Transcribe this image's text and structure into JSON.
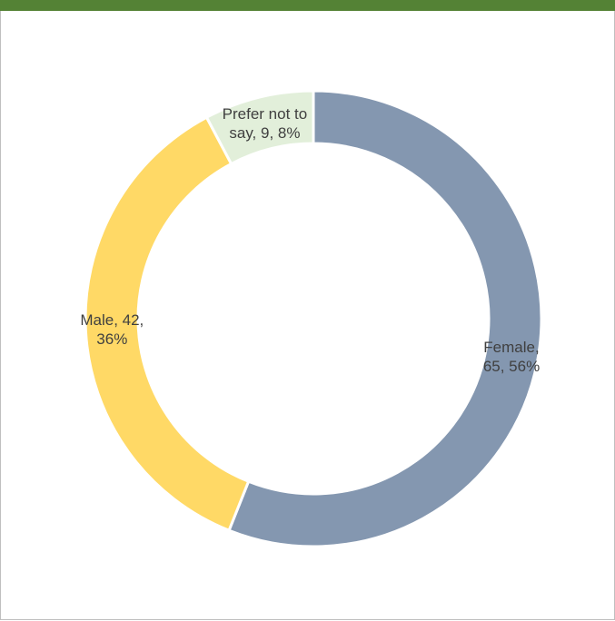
{
  "chart_data": {
    "type": "donut",
    "categories": [
      "Female",
      "Male",
      "Prefer not to say"
    ],
    "values": [
      65,
      42,
      9
    ],
    "value_labels": [
      "Female, 65, 56%",
      "Male, 42, 36%",
      "Prefer not to say, 9, 8%"
    ],
    "colors": [
      "#8497b0",
      "#ffd966",
      "#e2efda"
    ]
  }
}
